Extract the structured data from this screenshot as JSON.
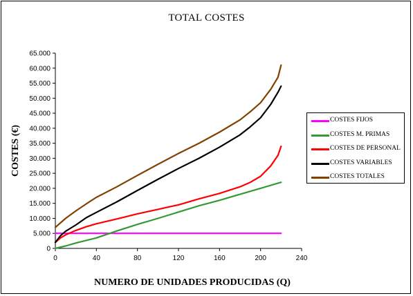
{
  "chart_data": {
    "type": "line",
    "title": "TOTAL COSTES",
    "xlabel": "NUMERO DE UNIDADES PRODUCIDAS (Q)",
    "ylabel": "COSTES (€)",
    "xlim": [
      0,
      240
    ],
    "ylim": [
      0,
      65000
    ],
    "xticks": [
      "0",
      "40",
      "80",
      "120",
      "160",
      "200",
      "240"
    ],
    "yticks": [
      "0",
      "5.000",
      "10.000",
      "15.000",
      "20.000",
      "25.000",
      "30.000",
      "35.000",
      "40.000",
      "45.000",
      "50.000",
      "55.000",
      "60.000",
      "65.000"
    ],
    "grid": false,
    "legend_position": "right",
    "series": [
      {
        "name": "COSTES FIJOS",
        "color": "#ff00ff",
        "points": [
          [
            0,
            5000
          ],
          [
            220,
            5000
          ]
        ]
      },
      {
        "name": "COSTES M. PRIMAS",
        "color": "#339933",
        "points": [
          [
            0,
            0
          ],
          [
            10,
            800
          ],
          [
            20,
            1800
          ],
          [
            40,
            3500
          ],
          [
            60,
            5800
          ],
          [
            80,
            8000
          ],
          [
            100,
            10000
          ],
          [
            120,
            12100
          ],
          [
            140,
            14200
          ],
          [
            160,
            16000
          ],
          [
            180,
            18000
          ],
          [
            200,
            20000
          ],
          [
            220,
            22000
          ]
        ]
      },
      {
        "name": "COSTES DE PERSONAL",
        "color": "#ff0000",
        "points": [
          [
            0,
            2000
          ],
          [
            5,
            3500
          ],
          [
            10,
            4500
          ],
          [
            20,
            6000
          ],
          [
            30,
            7200
          ],
          [
            40,
            8200
          ],
          [
            60,
            9800
          ],
          [
            80,
            11500
          ],
          [
            100,
            13000
          ],
          [
            120,
            14500
          ],
          [
            140,
            16500
          ],
          [
            160,
            18300
          ],
          [
            180,
            20500
          ],
          [
            190,
            22000
          ],
          [
            200,
            24000
          ],
          [
            210,
            27500
          ],
          [
            217,
            31000
          ],
          [
            220,
            34000
          ]
        ]
      },
      {
        "name": "COSTES VARIABLES",
        "color": "#000000",
        "points": [
          [
            0,
            2000
          ],
          [
            5,
            4200
          ],
          [
            10,
            5700
          ],
          [
            20,
            7800
          ],
          [
            30,
            10200
          ],
          [
            40,
            12000
          ],
          [
            60,
            15500
          ],
          [
            80,
            19300
          ],
          [
            100,
            23000
          ],
          [
            120,
            26600
          ],
          [
            140,
            30000
          ],
          [
            160,
            33700
          ],
          [
            180,
            37800
          ],
          [
            190,
            40500
          ],
          [
            200,
            43500
          ],
          [
            210,
            48000
          ],
          [
            217,
            52000
          ],
          [
            220,
            54000
          ]
        ]
      },
      {
        "name": "COSTES TOTALES",
        "color": "#804000",
        "points": [
          [
            0,
            7000
          ],
          [
            5,
            8500
          ],
          [
            10,
            10000
          ],
          [
            20,
            12500
          ],
          [
            30,
            14800
          ],
          [
            40,
            17000
          ],
          [
            60,
            20500
          ],
          [
            80,
            24300
          ],
          [
            100,
            28000
          ],
          [
            120,
            31600
          ],
          [
            140,
            35000
          ],
          [
            160,
            38700
          ],
          [
            180,
            42800
          ],
          [
            190,
            45500
          ],
          [
            200,
            48500
          ],
          [
            210,
            53000
          ],
          [
            217,
            57000
          ],
          [
            220,
            61000
          ]
        ]
      }
    ]
  }
}
